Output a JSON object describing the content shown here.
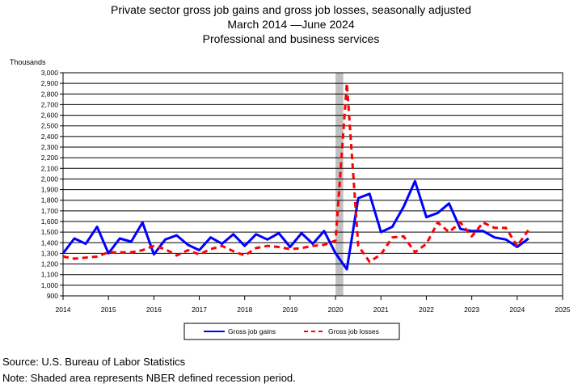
{
  "title_lines": [
    "Private sector gross job gains and gross job losses, seasonally adjusted",
    "March 2014 —June 2024",
    "Professional and business services"
  ],
  "footer": {
    "source": "Source: U.S. Bureau of Labor Statistics",
    "note": "Note: Shaded area represents NBER defined recession period."
  },
  "chart_data": {
    "type": "line",
    "ylabel": "Thousands",
    "ylim": [
      900,
      3000
    ],
    "ytick_step": 100,
    "yticks": [
      "900",
      "1,000",
      "1,100",
      "1,200",
      "1,300",
      "1,400",
      "1,500",
      "1,600",
      "1,700",
      "1,800",
      "1,900",
      "2,000",
      "2,100",
      "2,200",
      "2,300",
      "2,400",
      "2,500",
      "2,600",
      "2,700",
      "2,800",
      "2,900",
      "3,000"
    ],
    "xlim": [
      2014,
      2025
    ],
    "xticks": [
      "2014",
      "2015",
      "2016",
      "2017",
      "2018",
      "2019",
      "2020",
      "2021",
      "2022",
      "2023",
      "2024",
      "2025"
    ],
    "grid": "horizontal",
    "legend_placement": "bottom",
    "recession": {
      "start": 2020.0,
      "end": 2020.17,
      "color": "#c0c0c0"
    },
    "x": [
      2014.0,
      2014.25,
      2014.5,
      2014.75,
      2015.0,
      2015.25,
      2015.5,
      2015.75,
      2016.0,
      2016.25,
      2016.5,
      2016.75,
      2017.0,
      2017.25,
      2017.5,
      2017.75,
      2018.0,
      2018.25,
      2018.5,
      2018.75,
      2019.0,
      2019.25,
      2019.5,
      2019.75,
      2020.0,
      2020.25,
      2020.5,
      2020.75,
      2021.0,
      2021.25,
      2021.5,
      2021.75,
      2022.0,
      2022.25,
      2022.5,
      2022.75,
      2023.0,
      2023.25,
      2023.5,
      2023.75,
      2024.0,
      2024.25
    ],
    "series": [
      {
        "name": "Gross job gains",
        "color": "#0000ff",
        "style": "solid",
        "values": [
          1300,
          1440,
          1390,
          1550,
          1300,
          1440,
          1410,
          1590,
          1290,
          1430,
          1470,
          1380,
          1330,
          1450,
          1390,
          1480,
          1370,
          1480,
          1430,
          1490,
          1360,
          1490,
          1390,
          1510,
          1300,
          1150,
          1820,
          1860,
          1500,
          1550,
          1740,
          1980,
          1640,
          1680,
          1770,
          1530,
          1510,
          1510,
          1450,
          1430,
          1360,
          1440
        ]
      },
      {
        "name": "Gross job losses",
        "color": "#ff0000",
        "style": "dashed",
        "values": [
          1270,
          1250,
          1260,
          1270,
          1310,
          1310,
          1310,
          1330,
          1370,
          1340,
          1280,
          1330,
          1290,
          1340,
          1370,
          1320,
          1280,
          1350,
          1370,
          1360,
          1340,
          1350,
          1370,
          1380,
          1420,
          2900,
          1370,
          1220,
          1290,
          1450,
          1460,
          1310,
          1390,
          1590,
          1500,
          1590,
          1460,
          1590,
          1540,
          1540,
          1370,
          1520
        ]
      }
    ]
  }
}
